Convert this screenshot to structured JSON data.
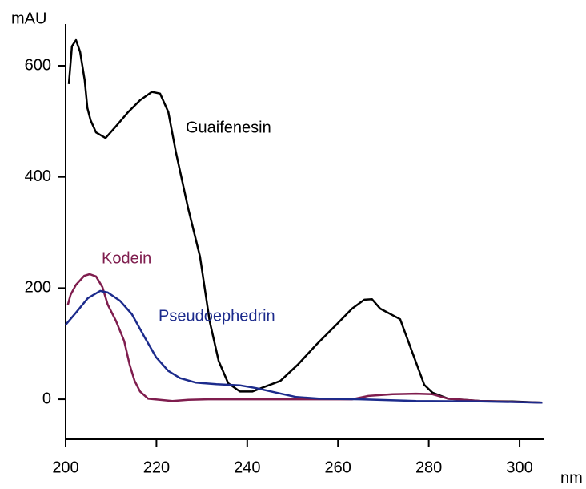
{
  "chart_data": {
    "type": "line",
    "y_label": "mAU",
    "x_label": "nm",
    "xlim": [
      200,
      305
    ],
    "ylim": [
      -72,
      675
    ],
    "xticks": [
      200,
      220,
      240,
      260,
      280,
      300
    ],
    "yticks": [
      0,
      200,
      400,
      600
    ],
    "series": [
      {
        "name": "Guaifenesin",
        "color": "#000000",
        "x": [
          200.7,
          201.4,
          202.3,
          203.2,
          204.2,
          204.8,
          205.5,
          206.7,
          208.8,
          211.1,
          213.8,
          216.4,
          219.0,
          220.8,
          222.6,
          224.3,
          227.0,
          229.6,
          231.7,
          233.7,
          235.8,
          238.4,
          241.1,
          243.7,
          247.3,
          251.1,
          255.2,
          259.6,
          263.1,
          265.8,
          267.5,
          269.3,
          273.7,
          276.4,
          279.0,
          280.8,
          284.3,
          291.4,
          298.4,
          305.0
        ],
        "values": [
          567,
          635,
          646,
          625,
          574,
          524,
          502,
          480,
          470,
          491,
          517,
          538,
          553,
          550,
          517,
          444,
          343,
          257,
          141,
          69,
          29,
          14,
          14,
          22,
          33,
          62,
          98,
          134,
          163,
          179,
          180,
          163,
          144,
          84,
          26,
          12,
          1,
          -3,
          -4,
          -6
        ]
      },
      {
        "name": "Kodein",
        "color": "#7f1d4e",
        "x": [
          200.5,
          201.1,
          202.3,
          204.1,
          205.3,
          206.7,
          208.1,
          209.3,
          211.1,
          212.9,
          214.1,
          215.2,
          216.4,
          218.2,
          220.8,
          223.5,
          227.0,
          231.4,
          256.1,
          263.1,
          266.7,
          272.0,
          277.2,
          280.8,
          284.3,
          291.4,
          305.0
        ],
        "values": [
          170,
          188,
          206,
          222,
          225,
          221,
          202,
          170,
          141,
          105,
          62,
          33,
          14,
          1,
          -1,
          -3,
          -1,
          0,
          0,
          0,
          6,
          9,
          10,
          9,
          1,
          -3,
          -6
        ]
      },
      {
        "name": "Pseudoephedrin",
        "color": "#1c2b8c",
        "x": [
          200,
          202.3,
          204.9,
          207.6,
          209.3,
          212.0,
          214.6,
          217.3,
          219.9,
          222.6,
          225.2,
          228.7,
          233.2,
          238.4,
          242.0,
          246.4,
          250.8,
          256.1,
          264.9,
          277.2,
          291.4,
          305.0
        ],
        "values": [
          134,
          156,
          182,
          195,
          192,
          177,
          153,
          113,
          76,
          51,
          38,
          30,
          27,
          25,
          20,
          12,
          4,
          1,
          0,
          -3,
          -4,
          -6
        ]
      }
    ]
  }
}
